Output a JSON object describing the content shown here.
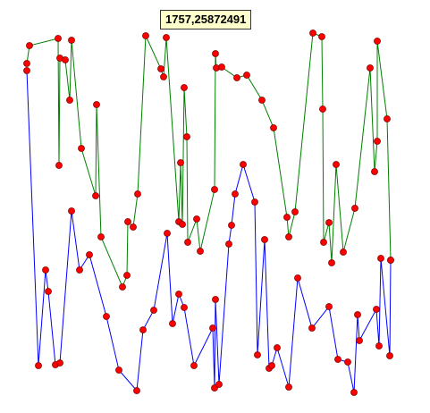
{
  "chart_data": {
    "type": "line",
    "grid": false,
    "legend": "none",
    "series": [
      {
        "color": "#008000",
        "points": [
          [
            30,
            71
          ],
          [
            33,
            51
          ],
          [
            65,
            43
          ],
          [
            66,
            185
          ],
          [
            67,
            65
          ],
          [
            73,
            67
          ],
          [
            78,
            112
          ],
          [
            80,
            45
          ],
          [
            91,
            166
          ],
          [
            107,
            219
          ],
          [
            108,
            117
          ],
          [
            113,
            265
          ],
          [
            137,
            321
          ],
          [
            142,
            308
          ],
          [
            143,
            248
          ],
          [
            149,
            254
          ],
          [
            154,
            217
          ],
          [
            163,
            40
          ],
          [
            180,
            77
          ],
          [
            183,
            86
          ],
          [
            186,
            42
          ],
          [
            200,
            248
          ],
          [
            202,
            182
          ],
          [
            204,
            251
          ],
          [
            206,
            98
          ],
          [
            209,
            153
          ],
          [
            210,
            271
          ],
          [
            220,
            245
          ],
          [
            224,
            281
          ],
          [
            240,
            212
          ],
          [
            241,
            60
          ],
          [
            242,
            76
          ],
          [
            248,
            75
          ],
          [
            265,
            87
          ],
          [
            276,
            84
          ],
          [
            293,
            112
          ],
          [
            306,
            143
          ],
          [
            321,
            243
          ],
          [
            323,
            265
          ],
          [
            330,
            237
          ],
          [
            350,
            37
          ],
          [
            360,
            41
          ],
          [
            361,
            122
          ],
          [
            362,
            271
          ],
          [
            368,
            249
          ],
          [
            371,
            294
          ],
          [
            376,
            184
          ],
          [
            384,
            282
          ],
          [
            397,
            233
          ],
          [
            414,
            76
          ],
          [
            419,
            192
          ],
          [
            422,
            158
          ],
          [
            422,
            46
          ],
          [
            433,
            133
          ],
          [
            437,
            291
          ]
        ]
      },
      {
        "color": "#0000ff",
        "points": [
          [
            30,
            79
          ],
          [
            43,
            409
          ],
          [
            51,
            302
          ],
          [
            54,
            326
          ],
          [
            62,
            408
          ],
          [
            67,
            406
          ],
          [
            80,
            236
          ],
          [
            89,
            302
          ],
          [
            100,
            285
          ],
          [
            119,
            354
          ],
          [
            133,
            414
          ],
          [
            153,
            437
          ],
          [
            160,
            369
          ],
          [
            172,
            347
          ],
          [
            187,
            261
          ],
          [
            193,
            362
          ],
          [
            200,
            329
          ],
          [
            206,
            344
          ],
          [
            217,
            409
          ],
          [
            238,
            367
          ],
          [
            240,
            434
          ],
          [
            241,
            335
          ],
          [
            245,
            430
          ],
          [
            256,
            273
          ],
          [
            259,
            252
          ],
          [
            263,
            217
          ],
          [
            272,
            184
          ],
          [
            285,
            226
          ],
          [
            288,
            397
          ],
          [
            296,
            268
          ],
          [
            301,
            412
          ],
          [
            304,
            409
          ],
          [
            310,
            389
          ],
          [
            323,
            433
          ],
          [
            333,
            311
          ],
          [
            349,
            367
          ],
          [
            368,
            343
          ],
          [
            378,
            402
          ],
          [
            389,
            405
          ],
          [
            396,
            439
          ],
          [
            400,
            352
          ],
          [
            402,
            381
          ],
          [
            421,
            346
          ],
          [
            424,
            387
          ],
          [
            426,
            289
          ],
          [
            436,
            398
          ],
          [
            437,
            291
          ]
        ]
      }
    ],
    "point_color": "#ff0000",
    "tooltip": "1757,25872491"
  }
}
